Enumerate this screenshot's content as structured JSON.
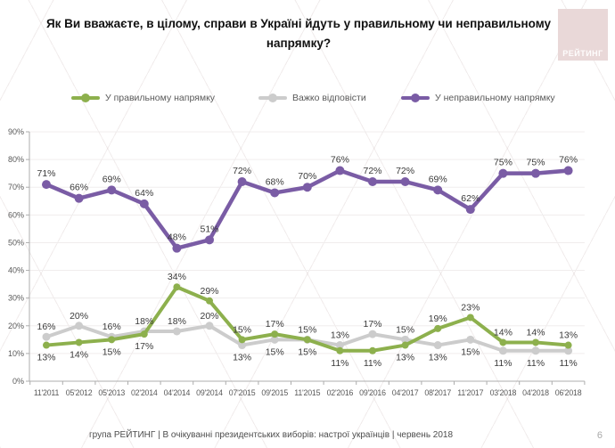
{
  "title": "Як Ви вважаєте, в цілому, справи в Україні йдуть у правильному чи неправильному напрямку?",
  "logo": {
    "text": "РЕЙТИНГ"
  },
  "colors": {
    "right_direction": "#8db04d",
    "hard_to_say": "#cccccc",
    "wrong_direction": "#7a5ca5",
    "axis": "#adadad",
    "axis_text": "#595959",
    "data_label": "#3a3a3a",
    "grid": "#f0eded",
    "logo_bg": "#e9d8d8"
  },
  "chart_data": {
    "type": "line",
    "title": "",
    "xlabel": "",
    "ylabel": "",
    "ylim": [
      0,
      90
    ],
    "ytick_step": 10,
    "yticks": [
      "0%",
      "10%",
      "20%",
      "30%",
      "40%",
      "50%",
      "60%",
      "70%",
      "80%",
      "90%"
    ],
    "grid": true,
    "legend_position": "top",
    "x": [
      "11'2011",
      "05'2012",
      "05'2013",
      "02'2014",
      "04'2014",
      "09'2014",
      "07'2015",
      "09'2015",
      "11'2015",
      "02'2016",
      "09'2016",
      "04'2017",
      "08'2017",
      "11'2017",
      "03'2018",
      "04'2018",
      "06'2018"
    ],
    "series": [
      {
        "name": "У правильному напрямку",
        "color": "#8db04d",
        "values": [
          13,
          14,
          15,
          17,
          34,
          29,
          15,
          17,
          15,
          11,
          11,
          13,
          19,
          23,
          14,
          14,
          13
        ]
      },
      {
        "name": "Важко відповісти",
        "color": "#cccccc",
        "values": [
          16,
          20,
          16,
          18,
          18,
          20,
          13,
          15,
          15,
          13,
          17,
          15,
          13,
          15,
          11,
          11,
          11
        ]
      },
      {
        "name": "У неправильному напрямку",
        "color": "#7a5ca5",
        "values": [
          71,
          66,
          69,
          64,
          48,
          51,
          72,
          68,
          70,
          76,
          72,
          72,
          69,
          62,
          75,
          75,
          76
        ]
      }
    ],
    "data_label_suffix": "%"
  },
  "footer": {
    "text": "група РЕЙТИНГ | В очікуванні президентських виборів: настрої українців | червень 2018",
    "page": "6"
  }
}
